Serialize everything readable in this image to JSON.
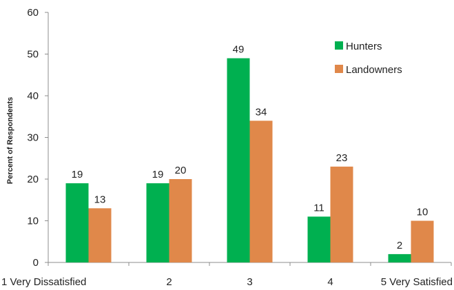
{
  "chart_data": {
    "type": "bar",
    "title": "",
    "xlabel": "",
    "ylabel": "Percent of Respondents",
    "categories": [
      "1  Very Dissatisfied",
      "2",
      "3",
      "4",
      "5  Very Satisfied"
    ],
    "series": [
      {
        "name": "Hunters",
        "color": "#00b050",
        "values": [
          19,
          19,
          49,
          11,
          2
        ]
      },
      {
        "name": "Landowners",
        "color": "#e0884a",
        "values": [
          13,
          20,
          34,
          23,
          10
        ]
      }
    ],
    "ylim": [
      0,
      60
    ],
    "yticks": [
      0,
      10,
      20,
      30,
      40,
      50,
      60
    ],
    "grid": false,
    "legend_position": "top-right",
    "data_labels": true
  }
}
